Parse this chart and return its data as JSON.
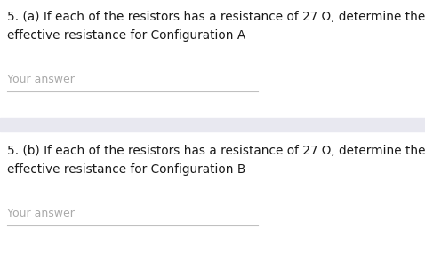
{
  "bg_color": "#ffffff",
  "divider_color": "#e8e8f0",
  "text_color_main": "#1a1a1a",
  "text_color_answer": "#aaaaaa",
  "line_color": "#c0c0c0",
  "question_a_line1": "5. (a) If each of the resistors has a resistance of 27 Ω, determine the",
  "question_a_line2": "effective resistance for Configuration A",
  "question_b_line1": "5. (b) If each of the resistors has a resistance of 27 Ω, determine the",
  "question_b_line2": "effective resistance for Configuration B",
  "your_answer_text": "Your answer",
  "font_size_question": 9.8,
  "font_size_answer": 9.0,
  "fig_width": 4.78,
  "fig_height": 2.93,
  "dpi": 100
}
